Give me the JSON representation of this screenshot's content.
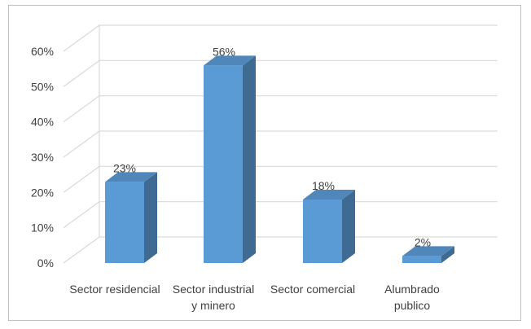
{
  "chart_data": {
    "type": "bar",
    "style": "3d-column",
    "categories": [
      [
        "Sector residencial"
      ],
      [
        "Sector industrial",
        "y minero"
      ],
      [
        "Sector comercial"
      ],
      [
        "Alumbrado",
        "publico"
      ]
    ],
    "values": [
      23,
      56,
      18,
      2
    ],
    "data_labels": [
      "23%",
      "56%",
      "18%",
      "2%"
    ],
    "y_ticks": [
      "0%",
      "10%",
      "20%",
      "30%",
      "40%",
      "50%",
      "60%"
    ],
    "ylim": [
      0,
      60
    ],
    "grid": true,
    "legend": "none",
    "colors": {
      "bar_front": "#5b9bd5",
      "bar_side": "#3f6b93",
      "bar_top": "#4f87bb",
      "grid": "#d9d9d9",
      "text": "#404040",
      "border": "#bfbfbf"
    }
  }
}
